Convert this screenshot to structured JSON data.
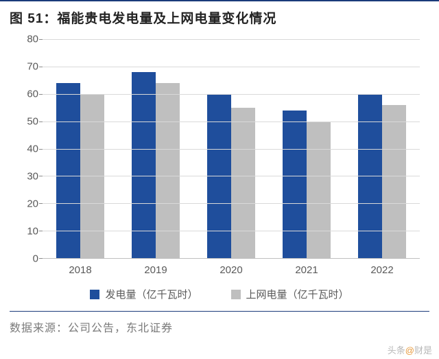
{
  "title_prefix": "图 51：",
  "title_main": "福能贵电发电量及上网电量变化情况",
  "chart": {
    "type": "bar",
    "categories": [
      "2018",
      "2019",
      "2020",
      "2021",
      "2022"
    ],
    "series": [
      {
        "name": "发电量（亿千瓦时）",
        "color": "#1f4e9c",
        "values": [
          64,
          68,
          60,
          54,
          60
        ]
      },
      {
        "name": "上网电量（亿千瓦时）",
        "color": "#bfbfbf",
        "values": [
          60,
          64,
          55,
          50,
          56
        ]
      }
    ],
    "ylim": [
      0,
      80
    ],
    "ytick_step": 10,
    "grid_color": "#d9d9d9",
    "axis_color": "#8c8c8c",
    "background_color": "#ffffff",
    "label_fontsize": 15,
    "label_color": "#595959",
    "title_fontsize": 19,
    "title_color": "#222222",
    "accent_rule_color": "#1a3a7a",
    "bar_width_ratio": 0.32
  },
  "source_label": "数据来源：",
  "source_text": "公司公告，东北证券",
  "watermark_prefix": "头条",
  "watermark_at": "@",
  "watermark_name": "财是"
}
